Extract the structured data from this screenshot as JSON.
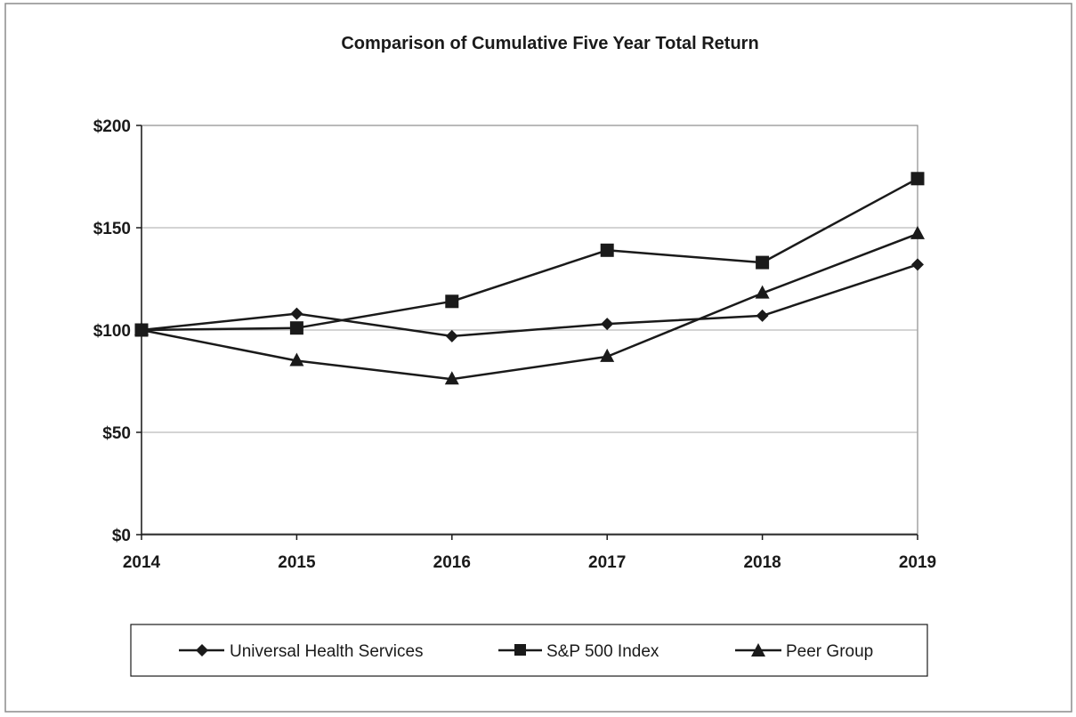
{
  "chart_data": {
    "type": "line",
    "title": "Comparison of Cumulative Five Year Total Return",
    "xlabel": "",
    "ylabel": "",
    "categories": [
      "2014",
      "2015",
      "2016",
      "2017",
      "2018",
      "2019"
    ],
    "ylim": [
      0,
      200
    ],
    "yticks": [
      0,
      50,
      100,
      150,
      200
    ],
    "ytick_labels": [
      "$0",
      "$50",
      "$100",
      "$150",
      "$200"
    ],
    "grid": true,
    "legend_position": "bottom",
    "series": [
      {
        "name": "Universal Health Services",
        "marker": "diamond",
        "values": [
          100,
          108,
          97,
          103,
          107,
          132
        ]
      },
      {
        "name": "S&P 500 Index",
        "marker": "square",
        "values": [
          100,
          101,
          114,
          139,
          133,
          174
        ]
      },
      {
        "name": "Peer Group",
        "marker": "triangle",
        "values": [
          100,
          85,
          76,
          87,
          118,
          147
        ]
      }
    ],
    "colors": {
      "line": "#1a1a1a",
      "grid": "#a8a8a8",
      "frame": "#8c8c8c"
    }
  }
}
